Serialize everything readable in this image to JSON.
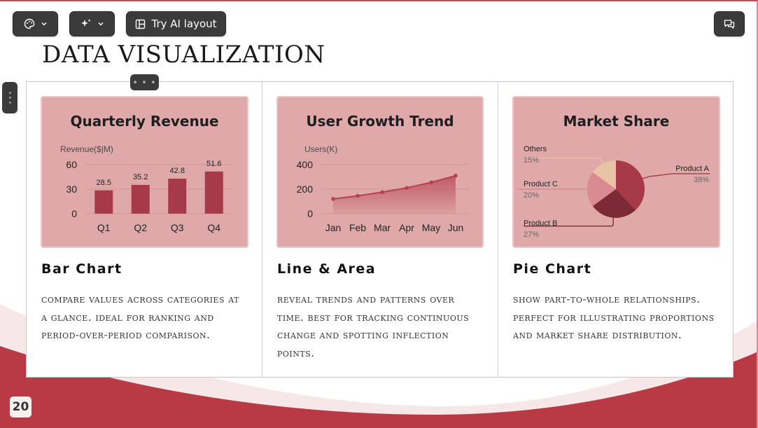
{
  "toolbar": {
    "theme_icon": "palette-icon",
    "ai_icon": "sparkle-icon",
    "layout_icon": "layout-icon",
    "layout_label": "Try AI layout",
    "comment_icon": "comment-icon"
  },
  "slide": {
    "title": "DATA VISUALIZATION",
    "page_number": "20",
    "accent_color": "#b83a45",
    "card_color": "#dfa9aa"
  },
  "columns": [
    {
      "card_title": "Quarterly Revenue",
      "heading": "Bar Chart",
      "description": "COMPARE VALUES ACROSS CATEGORIES AT A GLANCE. IDEAL FOR RANKING AND PERIOD-OVER-PERIOD COMPARISON."
    },
    {
      "card_title": "User Growth Trend",
      "heading": "Line & Area",
      "description": "REVEAL TRENDS AND PATTERNS OVER TIME. BEST FOR TRACKING CONTINUOUS CHANGE AND SPOTTING INFLECTION POINTS."
    },
    {
      "card_title": "Market Share",
      "heading": "Pie Chart",
      "description": "SHOW PART-TO-WHOLE RELATIONSHIPS. PERFECT FOR ILLUSTRATING PROPORTIONS AND MARKET SHARE DISTRIBUTION."
    }
  ],
  "chart_data": [
    {
      "type": "bar",
      "title": "Quarterly Revenue",
      "ylabel": "Revenue($|M)",
      "categories": [
        "Q1",
        "Q2",
        "Q3",
        "Q4"
      ],
      "values": [
        28.5,
        35.2,
        42.8,
        51.6
      ],
      "yticks": [
        "60",
        "30",
        "0"
      ],
      "ylim": [
        0,
        60
      ],
      "color": "#a63a48"
    },
    {
      "type": "area",
      "title": "User Growth Trend",
      "ylabel": "Users(K)",
      "categories": [
        "Jan",
        "Feb",
        "Mar",
        "Apr",
        "May",
        "Jun"
      ],
      "values": [
        120,
        145,
        175,
        210,
        255,
        310
      ],
      "yticks": [
        "400",
        "200",
        "0"
      ],
      "ylim": [
        0,
        400
      ],
      "color": "#b5404e"
    },
    {
      "type": "pie",
      "title": "Market Share",
      "series": [
        {
          "name": "Product A",
          "label": "Product A",
          "pct_label": "38%",
          "value": 38,
          "color": "#a63a48"
        },
        {
          "name": "Product B",
          "label": "Product B",
          "pct_label": "27%",
          "value": 27,
          "color": "#7d2a37"
        },
        {
          "name": "Product C",
          "label": "Product C",
          "pct_label": "20%",
          "value": 20,
          "color": "#d98a92"
        },
        {
          "name": "Others",
          "label": "Others",
          "pct_label": "15%",
          "value": 15,
          "color": "#e8c4a4"
        }
      ]
    }
  ]
}
